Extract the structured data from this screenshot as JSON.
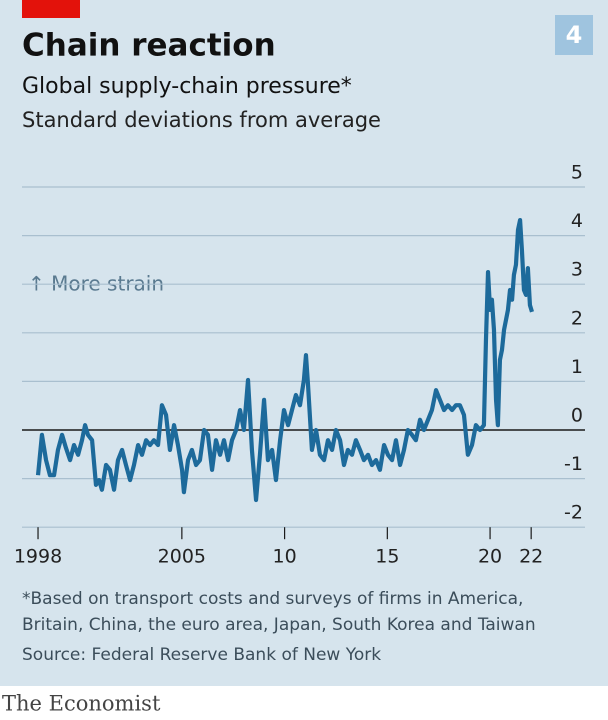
{
  "badge": "4",
  "brand": "The Economist",
  "chart_data": {
    "type": "line",
    "title": "Chain reaction",
    "subtitle": "Global supply-chain pressure*",
    "y_axis_label": "Standard deviations from average",
    "annotation": "↑ More strain",
    "footnote": [
      "*Based on transport costs and surveys of firms in America,",
      "Britain, China, the euro area, Japan, South Korea and Taiwan"
    ],
    "source": "Source: Federal Reserve Bank of New York",
    "color": "#1d6a9b",
    "xlim": [
      1997.22,
      2024.62
    ],
    "xticks": [
      1998,
      2005,
      {
        "value": 2010,
        "label": "10"
      },
      {
        "value": 2015,
        "label": "15"
      },
      {
        "value": 2020,
        "label": "20"
      },
      {
        "value": 2022,
        "label": "22"
      }
    ],
    "ylim": [
      -2,
      5
    ],
    "yticks": [
      5,
      4,
      3,
      2,
      1,
      0,
      -1,
      -2
    ],
    "grid": true,
    "x": [
      1998.0,
      1998.19,
      1998.39,
      1998.58,
      1998.78,
      1998.97,
      1999.17,
      1999.36,
      1999.56,
      1999.75,
      1999.95,
      2000.14,
      2000.29,
      2000.43,
      2000.63,
      2000.82,
      2000.97,
      2001.11,
      2001.31,
      2001.5,
      2001.7,
      2001.89,
      2002.09,
      2002.28,
      2002.48,
      2002.67,
      2002.87,
      2003.06,
      2003.26,
      2003.45,
      2003.64,
      2003.84,
      2004.03,
      2004.23,
      2004.42,
      2004.62,
      2004.81,
      2005.01,
      2005.1,
      2005.3,
      2005.49,
      2005.69,
      2005.88,
      2006.08,
      2006.27,
      2006.47,
      2006.66,
      2006.86,
      2007.05,
      2007.25,
      2007.44,
      2007.64,
      2007.83,
      2008.02,
      2008.22,
      2008.41,
      2008.61,
      2008.8,
      2009.0,
      2009.19,
      2009.39,
      2009.58,
      2009.78,
      2009.97,
      2010.17,
      2010.36,
      2010.55,
      2010.75,
      2010.94,
      2011.04,
      2011.14,
      2011.33,
      2011.53,
      2011.72,
      2011.92,
      2012.11,
      2012.31,
      2012.5,
      2012.7,
      2012.89,
      2013.08,
      2013.28,
      2013.47,
      2013.67,
      2013.86,
      2014.06,
      2014.25,
      2014.45,
      2014.64,
      2014.84,
      2015.03,
      2015.23,
      2015.42,
      2015.62,
      2015.81,
      2016.0,
      2016.2,
      2016.39,
      2016.59,
      2016.78,
      2016.98,
      2017.17,
      2017.37,
      2017.56,
      2017.76,
      2017.95,
      2018.15,
      2018.34,
      2018.53,
      2018.73,
      2018.92,
      2019.12,
      2019.31,
      2019.51,
      2019.7,
      2019.8,
      2019.9,
      2020.0,
      2020.09,
      2020.19,
      2020.29,
      2020.38,
      2020.48,
      2020.58,
      2020.68,
      2020.87,
      2020.97,
      2021.07,
      2021.16,
      2021.26,
      2021.36,
      2021.46,
      2021.55,
      2021.65,
      2021.75,
      2021.84,
      2021.94,
      2022.04
    ],
    "values": [
      -0.93,
      -0.1,
      -0.62,
      -0.93,
      -0.93,
      -0.41,
      -0.1,
      -0.37,
      -0.62,
      -0.31,
      -0.51,
      -0.21,
      0.1,
      -0.1,
      -0.21,
      -1.13,
      -1.03,
      -1.23,
      -0.72,
      -0.82,
      -1.23,
      -0.62,
      -0.41,
      -0.72,
      -1.03,
      -0.72,
      -0.31,
      -0.51,
      -0.21,
      -0.31,
      -0.21,
      -0.31,
      0.51,
      0.31,
      -0.41,
      0.1,
      -0.31,
      -0.82,
      -1.28,
      -0.62,
      -0.41,
      -0.72,
      -0.62,
      0.0,
      -0.1,
      -0.82,
      -0.21,
      -0.51,
      -0.21,
      -0.62,
      -0.21,
      0.0,
      0.41,
      0.0,
      1.03,
      -0.41,
      -1.44,
      -0.51,
      0.62,
      -0.62,
      -0.41,
      -1.03,
      -0.21,
      0.41,
      0.1,
      0.41,
      0.72,
      0.51,
      1.03,
      1.54,
      0.93,
      -0.41,
      0.0,
      -0.51,
      -0.62,
      -0.21,
      -0.41,
      0.0,
      -0.21,
      -0.72,
      -0.41,
      -0.51,
      -0.21,
      -0.41,
      -0.62,
      -0.51,
      -0.72,
      -0.62,
      -0.82,
      -0.31,
      -0.51,
      -0.62,
      -0.21,
      -0.72,
      -0.41,
      0.0,
      -0.1,
      -0.21,
      0.21,
      0.0,
      0.21,
      0.41,
      0.82,
      0.62,
      0.41,
      0.51,
      0.41,
      0.51,
      0.51,
      0.31,
      -0.51,
      -0.31,
      0.1,
      0.0,
      0.1,
      1.85,
      3.25,
      2.47,
      2.68,
      2.06,
      0.62,
      0.1,
      1.44,
      1.65,
      2.06,
      2.47,
      2.88,
      2.68,
      3.19,
      3.4,
      4.12,
      4.32,
      3.7,
      2.88,
      2.78,
      3.33,
      2.57,
      2.43
    ]
  }
}
